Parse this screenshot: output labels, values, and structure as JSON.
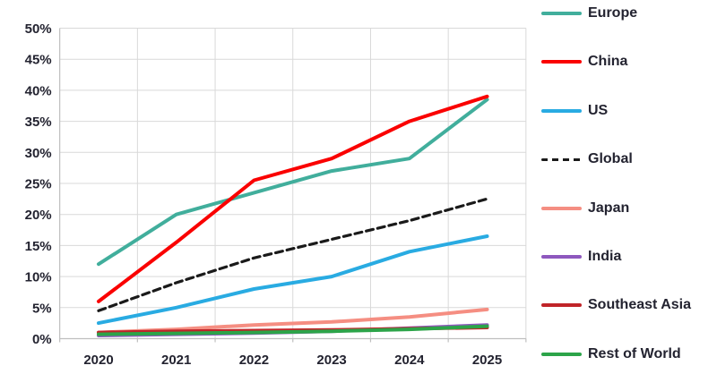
{
  "chart_data": {
    "type": "line",
    "title": "",
    "xlabel": "",
    "ylabel": "",
    "categories": [
      "2020",
      "2021",
      "2022",
      "2023",
      "2024",
      "2025"
    ],
    "series": [
      {
        "name": "Europe",
        "color": "#41AE9C",
        "dashed": false,
        "values": [
          12,
          20,
          23.5,
          27,
          29,
          38.5
        ]
      },
      {
        "name": "China",
        "color": "#FA0000",
        "dashed": false,
        "values": [
          6,
          15.5,
          25.5,
          29,
          35,
          39
        ]
      },
      {
        "name": "US",
        "color": "#29ABE2",
        "dashed": false,
        "values": [
          2.5,
          5,
          8,
          10,
          14,
          16.5
        ]
      },
      {
        "name": "Global",
        "color": "#1A1A1A",
        "dashed": true,
        "values": [
          4.5,
          9,
          13,
          16,
          19,
          22.5
        ]
      },
      {
        "name": "Japan",
        "color": "#F58E82",
        "dashed": false,
        "values": [
          1,
          1.5,
          2.2,
          2.7,
          3.5,
          4.7
        ]
      },
      {
        "name": "India",
        "color": "#8E58BE",
        "dashed": false,
        "values": [
          0.5,
          0.7,
          0.9,
          1.2,
          1.7,
          2.2
        ]
      },
      {
        "name": "Southeast Asia",
        "color": "#C02428",
        "dashed": false,
        "values": [
          1,
          1.2,
          1.3,
          1.4,
          1.6,
          1.8
        ]
      },
      {
        "name": "Rest of World",
        "color": "#2CA449",
        "dashed": false,
        "values": [
          0.7,
          0.85,
          1,
          1.2,
          1.5,
          2
        ]
      }
    ],
    "y_axis": {
      "min": 0,
      "max": 50,
      "step": 5,
      "tick_labels": [
        "0%",
        "5%",
        "10%",
        "15%",
        "20%",
        "25%",
        "30%",
        "35%",
        "40%",
        "45%",
        "50%"
      ]
    },
    "x_axis": {
      "tick_labels": [
        "2020",
        "2021",
        "2022",
        "2023",
        "2024",
        "2025"
      ]
    },
    "grid": true,
    "legend_position": "right",
    "colors": {
      "gridline": "#D9D9D9",
      "axis_line": "#BFBFBF",
      "tick_text": "#232330"
    }
  }
}
